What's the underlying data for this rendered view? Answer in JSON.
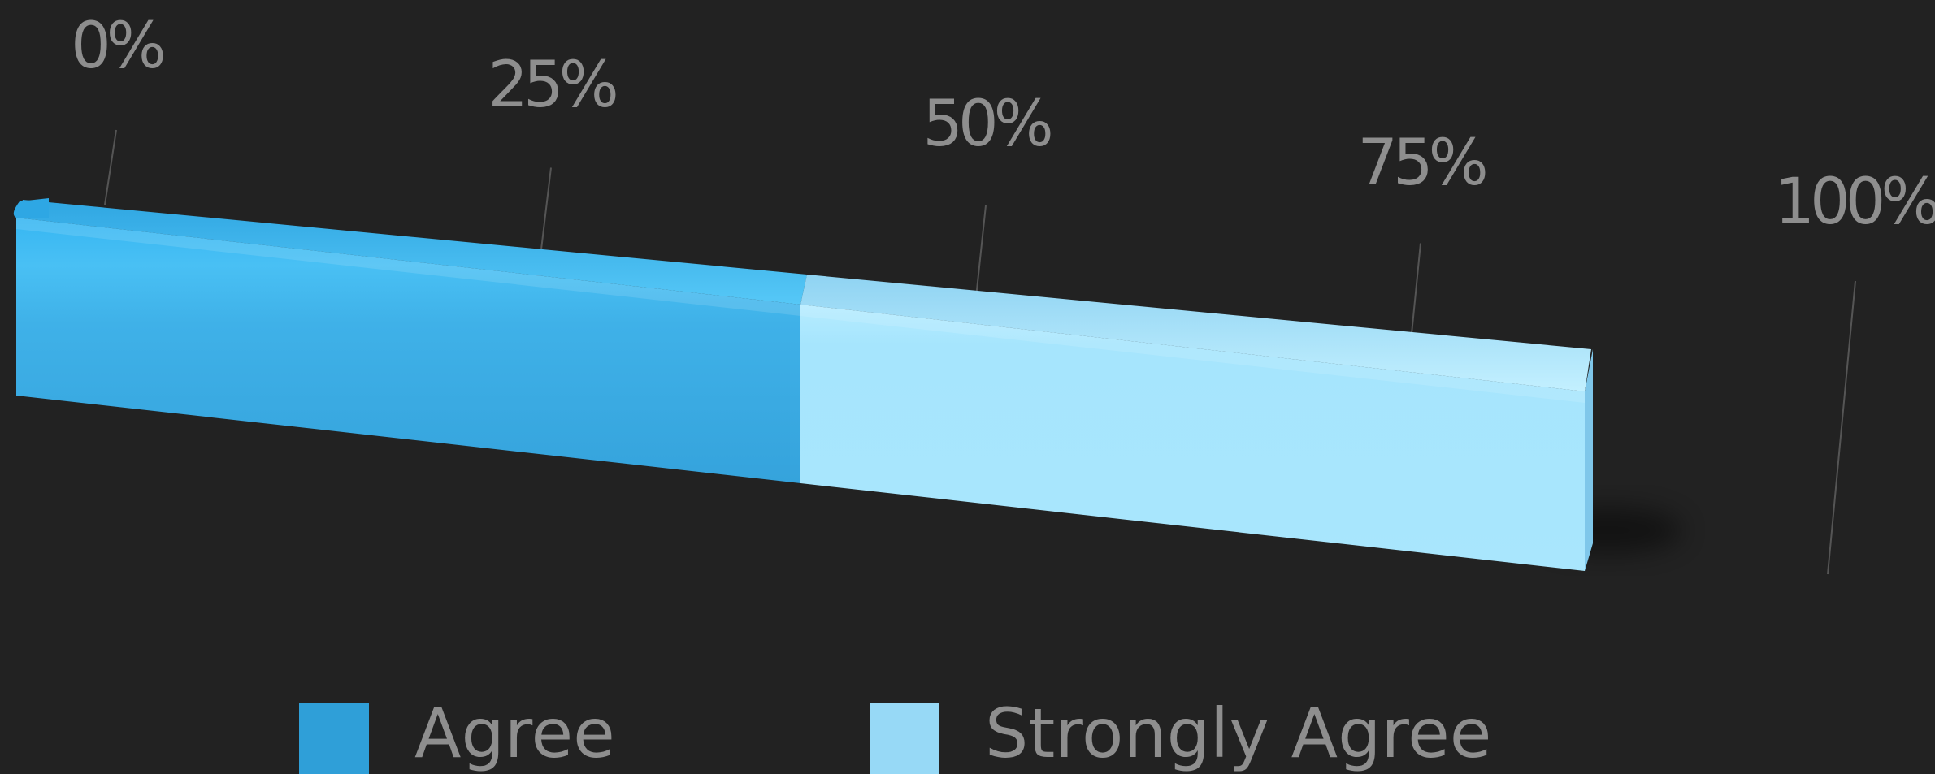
{
  "chart_data": {
    "type": "bar",
    "orientation": "horizontal",
    "stacked": true,
    "style": "3d",
    "categories": [
      ""
    ],
    "series": [
      {
        "name": "Agree",
        "values": [
          50
        ],
        "color": "#3fb1e8"
      },
      {
        "name": "Strongly Agree",
        "values": [
          50
        ],
        "color": "#a7e6fe"
      }
    ],
    "xlim": [
      0,
      100
    ],
    "x_ticks": [
      "0%",
      "25%",
      "50%",
      "75%",
      "100%"
    ],
    "title": "",
    "xlabel": "",
    "ylabel": "",
    "grid": false,
    "legend": {
      "position": "bottom",
      "items": [
        {
          "label": "Agree",
          "color": "#2f9fd8"
        },
        {
          "label": "Strongly Agree",
          "color": "#97d9f6"
        }
      ]
    },
    "background": "#222222"
  }
}
